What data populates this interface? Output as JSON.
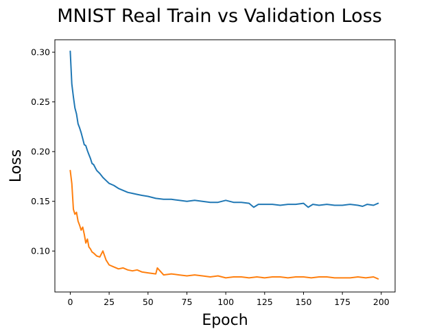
{
  "chart_data": {
    "type": "line",
    "title": "MNIST Real Train vs Validation Loss",
    "xlabel": "Epoch",
    "ylabel": "Loss",
    "xlim": [
      -9.9,
      208.9
    ],
    "ylim": [
      0.0588,
      0.3125
    ],
    "xticks": [
      0,
      25,
      50,
      75,
      100,
      125,
      150,
      175,
      200
    ],
    "yticks": [
      0.1,
      0.15,
      0.2,
      0.25,
      0.3
    ],
    "ytick_labels": [
      "0.10",
      "0.15",
      "0.20",
      "0.25",
      "0.30"
    ],
    "grid": false,
    "legend": "none",
    "series": [
      {
        "color": "#1f77b4",
        "x": [
          0,
          1,
          2,
          3,
          4,
          5,
          6,
          7,
          8,
          9,
          10,
          11,
          12,
          13,
          14,
          15,
          17,
          19,
          21,
          23,
          25,
          28,
          31,
          34,
          37,
          40,
          43,
          46,
          50,
          55,
          60,
          65,
          70,
          75,
          80,
          85,
          90,
          95,
          100,
          105,
          110,
          115,
          118,
          121,
          125,
          130,
          135,
          140,
          145,
          150,
          153,
          156,
          160,
          165,
          170,
          175,
          180,
          185,
          188,
          191,
          195,
          198
        ],
        "y": [
          0.301,
          0.268,
          0.255,
          0.244,
          0.238,
          0.228,
          0.224,
          0.219,
          0.213,
          0.207,
          0.206,
          0.201,
          0.197,
          0.193,
          0.188,
          0.187,
          0.181,
          0.178,
          0.174,
          0.171,
          0.168,
          0.166,
          0.163,
          0.161,
          0.159,
          0.158,
          0.157,
          0.156,
          0.155,
          0.153,
          0.152,
          0.152,
          0.151,
          0.15,
          0.151,
          0.15,
          0.149,
          0.149,
          0.151,
          0.149,
          0.149,
          0.148,
          0.144,
          0.147,
          0.147,
          0.147,
          0.146,
          0.147,
          0.147,
          0.148,
          0.144,
          0.147,
          0.146,
          0.147,
          0.146,
          0.146,
          0.147,
          0.146,
          0.145,
          0.147,
          0.146,
          0.148
        ]
      },
      {
        "color": "#ff7f0e",
        "x": [
          0,
          1,
          2,
          3,
          4,
          5,
          6,
          7,
          8,
          9,
          10,
          11,
          12,
          13,
          14,
          15,
          17,
          19,
          21,
          23,
          25,
          28,
          31,
          34,
          37,
          40,
          43,
          46,
          50,
          55,
          56,
          60,
          65,
          70,
          75,
          80,
          85,
          90,
          95,
          100,
          105,
          110,
          115,
          120,
          125,
          130,
          135,
          140,
          145,
          150,
          155,
          160,
          165,
          170,
          175,
          180,
          185,
          190,
          195,
          198
        ],
        "y": [
          0.181,
          0.168,
          0.142,
          0.137,
          0.139,
          0.13,
          0.126,
          0.121,
          0.124,
          0.117,
          0.108,
          0.112,
          0.104,
          0.102,
          0.099,
          0.098,
          0.095,
          0.094,
          0.1,
          0.091,
          0.086,
          0.084,
          0.082,
          0.083,
          0.081,
          0.08,
          0.081,
          0.079,
          0.078,
          0.077,
          0.083,
          0.076,
          0.077,
          0.076,
          0.075,
          0.076,
          0.075,
          0.074,
          0.075,
          0.073,
          0.074,
          0.074,
          0.073,
          0.074,
          0.073,
          0.074,
          0.074,
          0.073,
          0.074,
          0.074,
          0.073,
          0.074,
          0.074,
          0.073,
          0.073,
          0.073,
          0.074,
          0.073,
          0.074,
          0.072
        ]
      }
    ]
  }
}
